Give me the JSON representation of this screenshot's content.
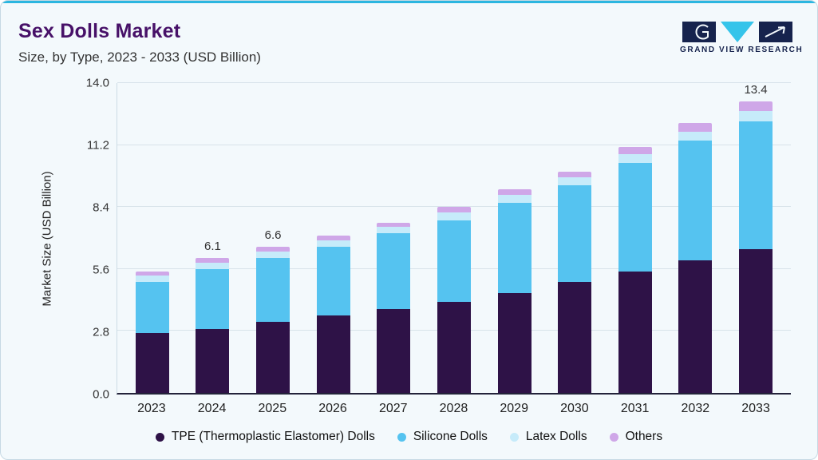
{
  "header": {
    "title": "Sex Dolls Market",
    "subtitle": "Size, by Type, 2023 - 2033 (USD Billion)",
    "logo_text": "GRAND VIEW RESEARCH"
  },
  "colors": {
    "accent_top": "#2bb6e0",
    "card_background": "#f3f9fc",
    "card_border": "#c6d9e4",
    "title_text": "#471168",
    "gridline": "#d8e3ea",
    "axis_line": "#23233a",
    "logo_navy": "#16234d",
    "logo_cyan": "#35c4ea"
  },
  "chart_data": {
    "type": "bar",
    "stacked": true,
    "title": "Sex Dolls Market",
    "subtitle": "Size, by Type, 2023 - 2033 (USD Billion)",
    "xlabel": "",
    "ylabel": "Market Size (USD Billion)",
    "ylim": [
      0,
      14.0
    ],
    "yticks": [
      0.0,
      2.8,
      5.6,
      8.4,
      11.2,
      14.0
    ],
    "grid": true,
    "legend_position": "bottom",
    "categories": [
      "2023",
      "2024",
      "2025",
      "2026",
      "2027",
      "2028",
      "2029",
      "2030",
      "2031",
      "2032",
      "2033"
    ],
    "series": [
      {
        "name": "TPE (Thermoplastic Elastomer) Dolls",
        "color": "#2E1247",
        "values": [
          2.7,
          2.9,
          3.2,
          3.5,
          3.8,
          4.1,
          4.5,
          5.0,
          5.5,
          6.0,
          6.6
        ]
      },
      {
        "name": "Silicone Dolls",
        "color": "#55C3F0",
        "values": [
          2.3,
          2.7,
          2.9,
          3.1,
          3.4,
          3.7,
          4.1,
          4.4,
          4.9,
          5.4,
          5.9
        ]
      },
      {
        "name": "Latex Dolls",
        "color": "#C6EBFA",
        "values": [
          0.3,
          0.3,
          0.3,
          0.3,
          0.3,
          0.35,
          0.35,
          0.35,
          0.4,
          0.4,
          0.45
        ]
      },
      {
        "name": "Others",
        "color": "#CFA7E8",
        "values": [
          0.2,
          0.2,
          0.2,
          0.2,
          0.2,
          0.25,
          0.25,
          0.25,
          0.3,
          0.4,
          0.45
        ]
      }
    ],
    "totals": [
      5.5,
      6.1,
      6.6,
      7.1,
      7.7,
      8.4,
      9.2,
      10.0,
      11.1,
      12.2,
      13.4
    ],
    "total_labels": {
      "2024": "6.1",
      "2025": "6.6",
      "2033": "13.4"
    }
  }
}
